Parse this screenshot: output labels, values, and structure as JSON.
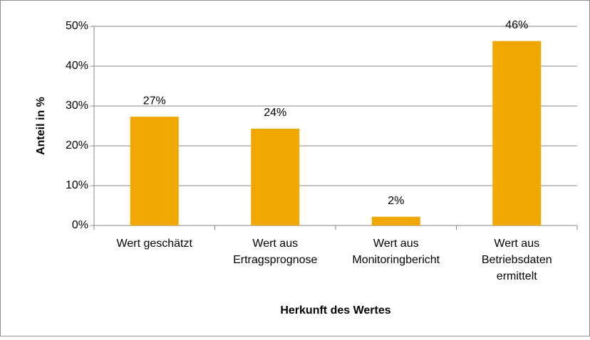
{
  "chart_data": {
    "type": "bar",
    "y_label": "Anteil in  %",
    "x_label": "Herkunft des Wertes",
    "categories": [
      [
        "Wert geschätzt"
      ],
      [
        "Wert aus",
        "Ertragsprognose"
      ],
      [
        "Wert aus",
        "Monitoringbericht"
      ],
      [
        "Wert aus",
        "Betriebsdaten",
        "ermittelt"
      ]
    ],
    "values": [
      27.3,
      24.3,
      2.2,
      46.3
    ],
    "value_labels": [
      "27%",
      "24%",
      "2%",
      "46%"
    ],
    "color": "#f0a800",
    "ylim": [
      0,
      50
    ],
    "yticks": [
      {
        "value": 0,
        "label": "0%"
      },
      {
        "value": 10,
        "label": "10%"
      },
      {
        "value": 20,
        "label": "20%"
      },
      {
        "value": 30,
        "label": "30%"
      },
      {
        "value": 40,
        "label": "40%"
      },
      {
        "value": 50,
        "label": "50%"
      }
    ],
    "grid": true
  }
}
